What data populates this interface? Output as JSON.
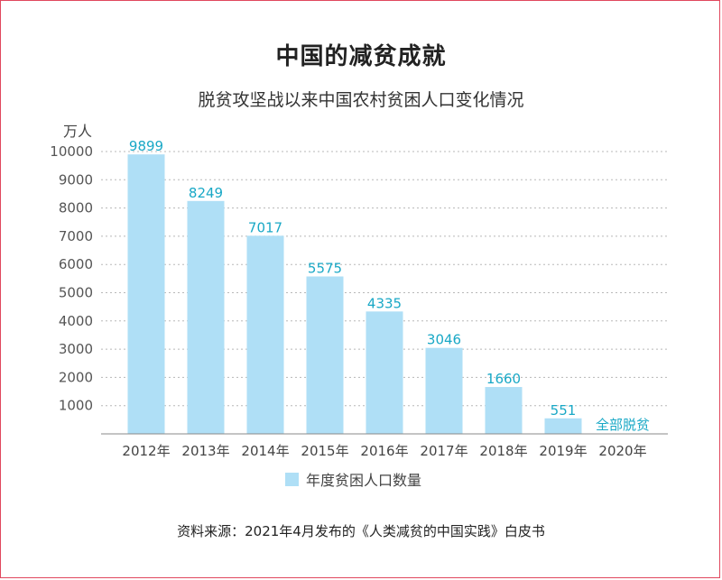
{
  "title": "中国的减贫成就",
  "subtitle": "脱贫攻坚战以来中国农村贫困人口变化情况",
  "source": "资料来源：2021年4月发布的《人类减贫的中国实践》白皮书",
  "colors": {
    "bar": "#afdff6",
    "data_label": "#19a8c6",
    "grid": "#b8b8b8",
    "border": "#e0485e"
  },
  "chart_data": {
    "type": "bar",
    "ylabel": "万人",
    "ylim": [
      0,
      10000
    ],
    "yticks": [
      1000,
      2000,
      3000,
      4000,
      5000,
      6000,
      7000,
      8000,
      9000,
      10000
    ],
    "grid": true,
    "categories": [
      "2012年",
      "2013年",
      "2014年",
      "2015年",
      "2016年",
      "2017年",
      "2018年",
      "2019年",
      "2020年"
    ],
    "series": [
      {
        "name": "年度贫困人口数量",
        "values": [
          9899,
          8249,
          7017,
          5575,
          4335,
          3046,
          1660,
          551,
          0
        ],
        "labels": [
          "9899",
          "8249",
          "7017",
          "5575",
          "4335",
          "3046",
          "1660",
          "551",
          "全部脱贫"
        ]
      }
    ],
    "legend": "bottom-center"
  }
}
